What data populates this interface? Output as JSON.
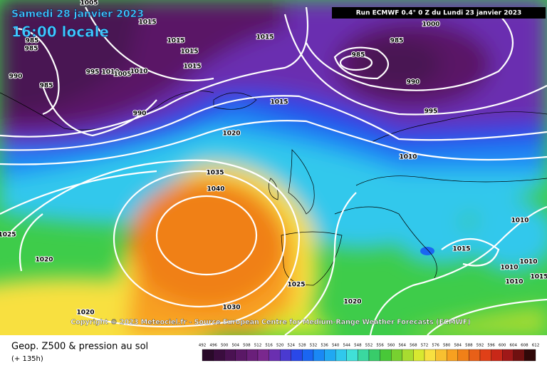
{
  "header": {
    "title": "Samedi 28 janvier 2023",
    "subtitle": "16:00 locale",
    "run": "Run ECMWF 0.4° 0 Z du Lundi 23 janvier 2023"
  },
  "copyright": "Copyright © 2023 Meteociel.fr - Source European Centre for Medium-Range Weather Forecasts (ECMWF)",
  "footer": {
    "title": "Geop. Z500 & pression au sol",
    "lead": "(+ 135h)"
  },
  "isobar_labels": [
    1005,
    1015,
    985,
    985,
    990,
    985,
    995,
    1010,
    1005,
    1010,
    1015,
    1015,
    1015,
    1015,
    990,
    1000,
    985,
    985,
    990,
    995,
    1015,
    1020,
    1035,
    1040,
    1010,
    1025,
    1020,
    1015,
    1010,
    1010,
    1010,
    1015,
    1010,
    1025,
    1020,
    1030,
    1020
  ],
  "scale": {
    "labels": [
      492,
      496,
      500,
      504,
      508,
      512,
      516,
      520,
      524,
      528,
      532,
      536,
      540,
      544,
      548,
      552,
      556,
      560,
      564,
      568,
      572,
      576,
      580,
      584,
      588,
      592,
      596,
      600,
      604,
      608,
      612
    ],
    "colors": [
      "#2a0a2a",
      "#3a0d3e",
      "#4a1252",
      "#5a1866",
      "#6a1f7a",
      "#7a288e",
      "#6a2fb0",
      "#4a3ad0",
      "#2a48e8",
      "#1a66f2",
      "#1a88f5",
      "#20a8f2",
      "#30c8ec",
      "#40e0d8",
      "#3ad8a0",
      "#38cc6a",
      "#48c838",
      "#78d030",
      "#a8dc30",
      "#d8e830",
      "#f8e040",
      "#f8c030",
      "#f8a020",
      "#f08018",
      "#e86018",
      "#e04018",
      "#c82818",
      "#a01818",
      "#701010",
      "#300808"
    ]
  }
}
